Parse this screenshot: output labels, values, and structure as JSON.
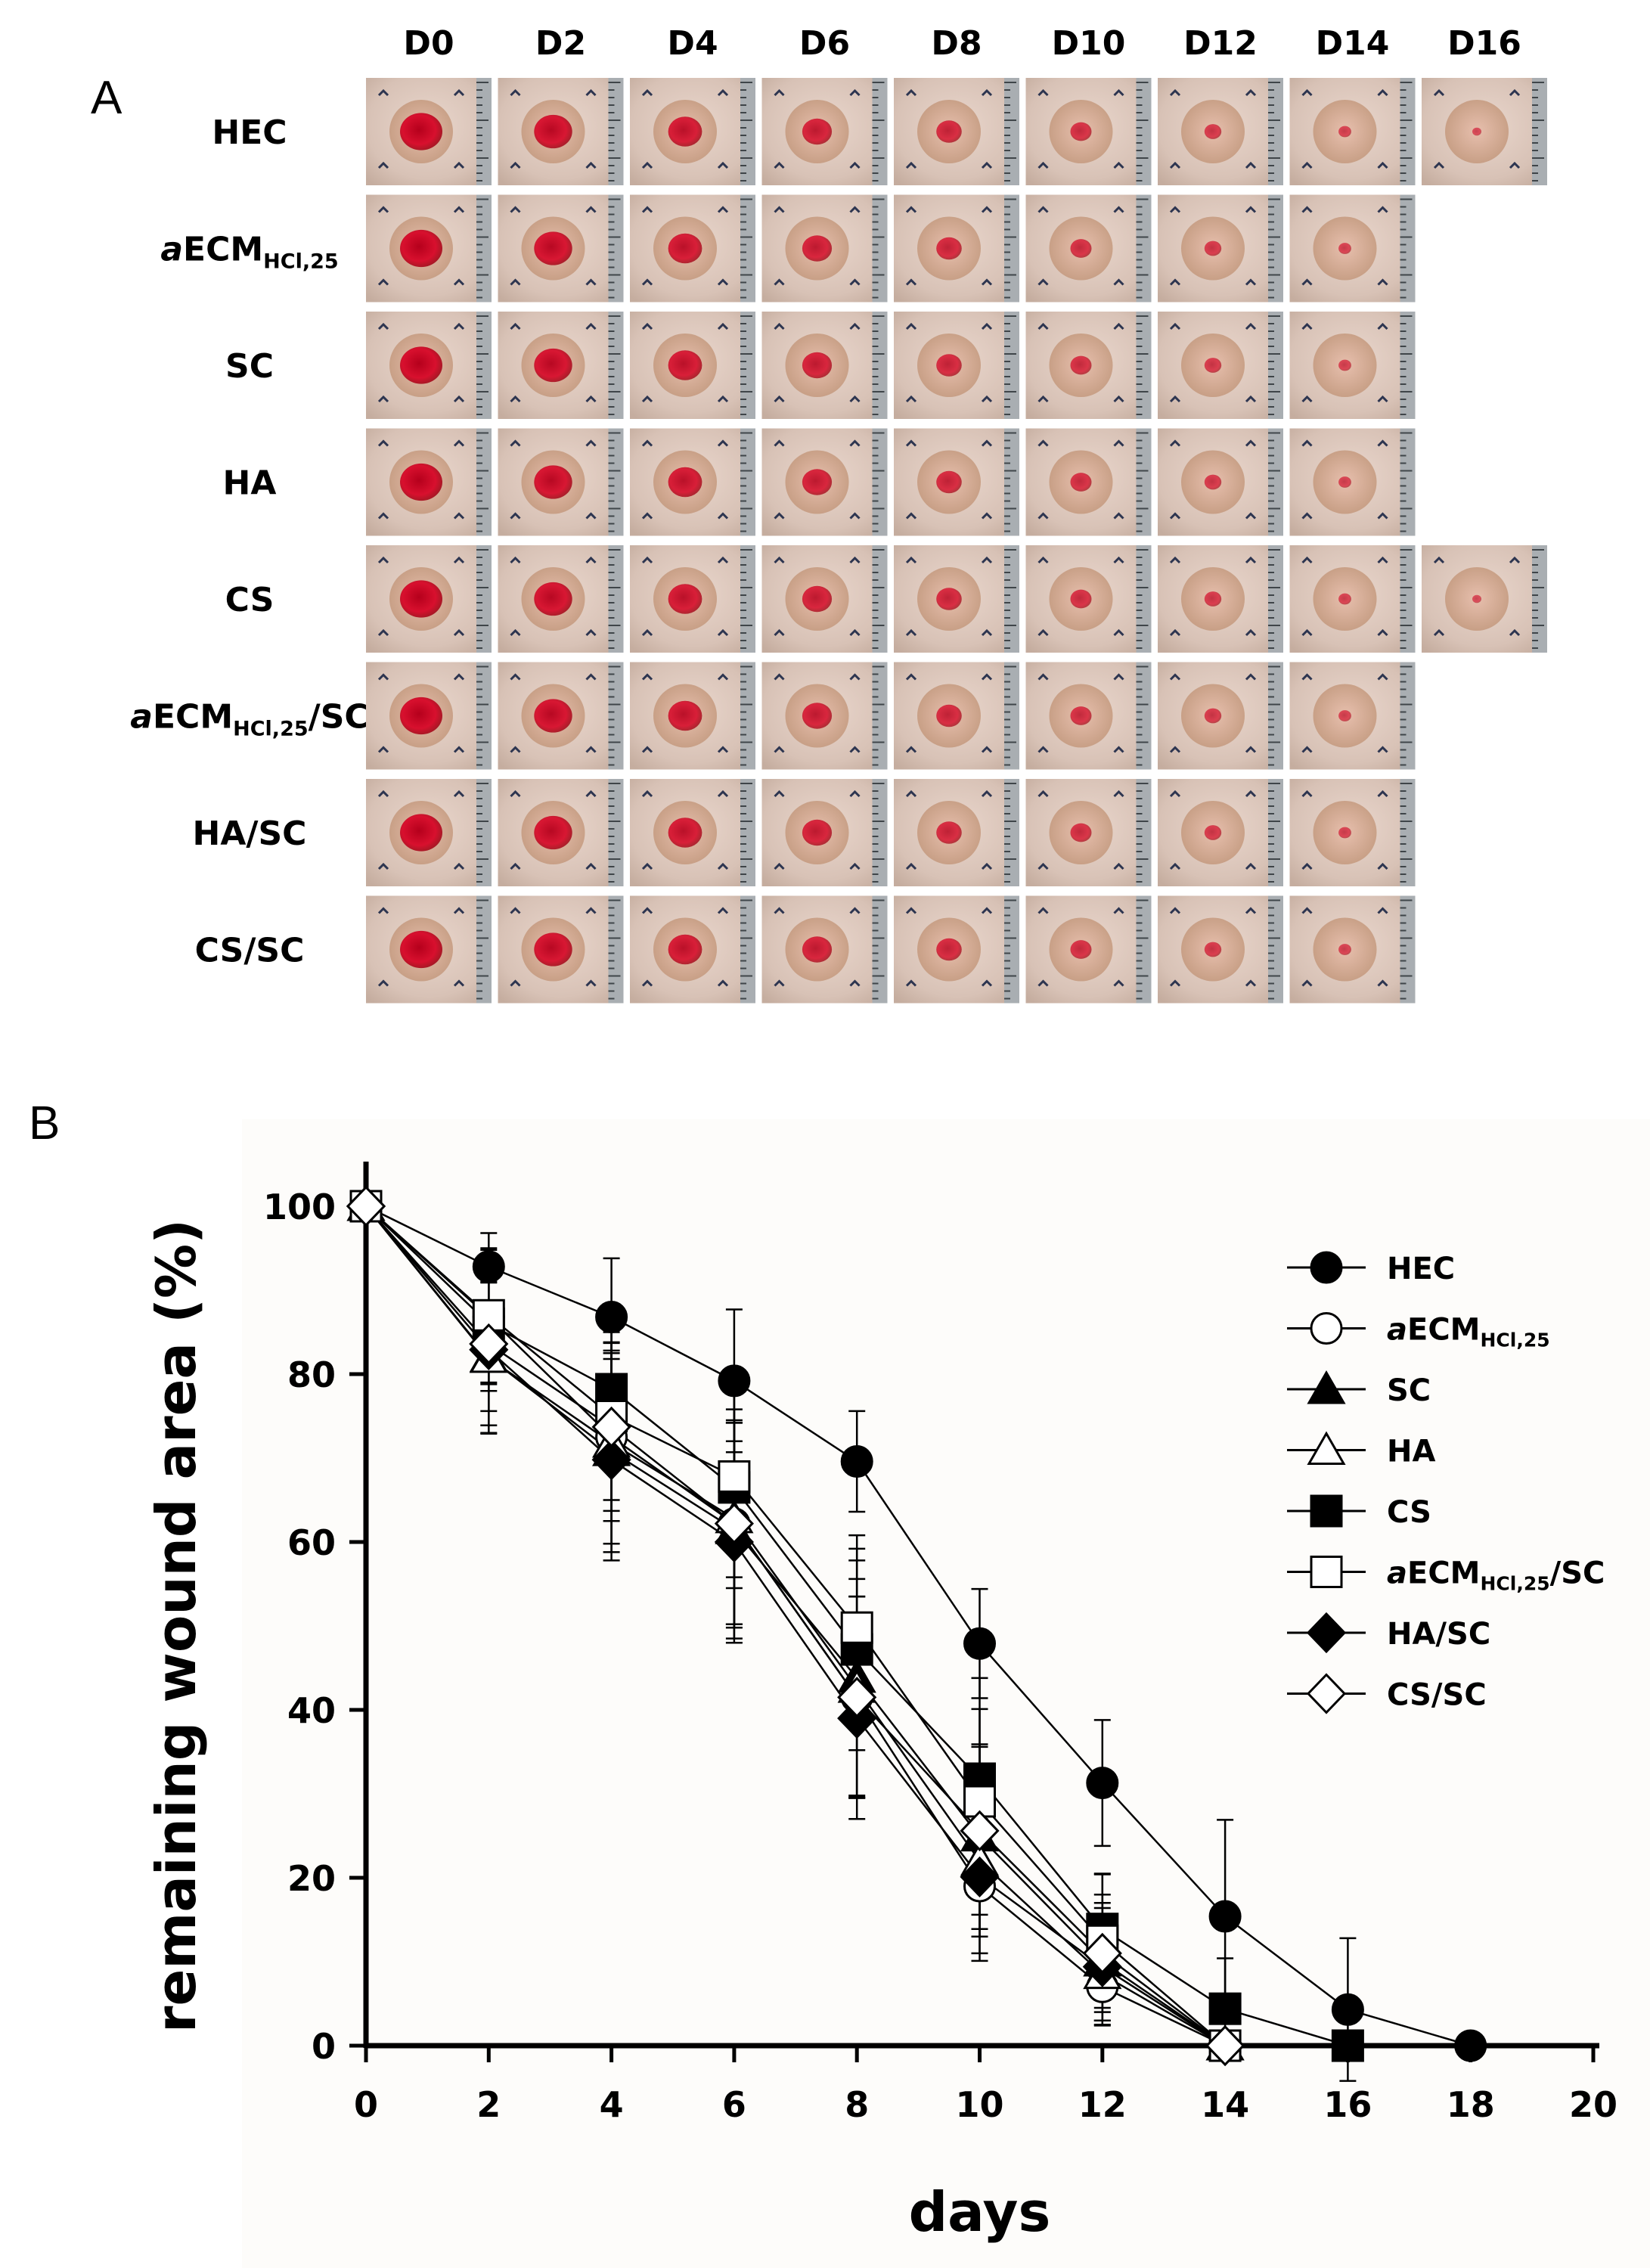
{
  "panel_labels": {
    "a": "A",
    "b": "B"
  },
  "photo_grid": {
    "days": [
      "D0",
      "D2",
      "D4",
      "D6",
      "D8",
      "D10",
      "D12",
      "D14",
      "D16"
    ],
    "rows": [
      {
        "label": "HEC",
        "italic_prefix": "",
        "main": "HEC",
        "sub": "",
        "suffix": "",
        "n_photos": 9
      },
      {
        "label": "aECM HCl,25",
        "italic_prefix": "a",
        "main": "ECM",
        "sub": "HCl,25",
        "suffix": "",
        "n_photos": 8
      },
      {
        "label": "SC",
        "italic_prefix": "",
        "main": "SC",
        "sub": "",
        "suffix": "",
        "n_photos": 8
      },
      {
        "label": "HA",
        "italic_prefix": "",
        "main": "HA",
        "sub": "",
        "suffix": "",
        "n_photos": 8
      },
      {
        "label": "CS",
        "italic_prefix": "",
        "main": "CS",
        "sub": "",
        "suffix": "",
        "n_photos": 9
      },
      {
        "label": "aECM HCl,25 /SC",
        "italic_prefix": "a",
        "main": "ECM",
        "sub": "HCl,25",
        "suffix": "/SC",
        "n_photos": 8
      },
      {
        "label": "HA/SC",
        "italic_prefix": "",
        "main": "HA/SC",
        "sub": "",
        "suffix": "",
        "n_photos": 8
      },
      {
        "label": "CS/SC",
        "italic_prefix": "",
        "main": "CS/SC",
        "sub": "",
        "suffix": "",
        "n_photos": 8
      }
    ]
  },
  "chart_data": {
    "type": "line",
    "xlabel": "days",
    "ylabel": "remaining wound area (%)",
    "xlim": [
      0,
      20
    ],
    "ylim": [
      0,
      100
    ],
    "xticks": [
      0,
      2,
      4,
      6,
      8,
      10,
      12,
      14,
      16,
      18,
      20
    ],
    "yticks": [
      0,
      20,
      40,
      60,
      80,
      100
    ],
    "legend_position": "top-right",
    "series": [
      {
        "name": "HEC",
        "italic_prefix": "",
        "main": "HEC",
        "sub": "",
        "suffix": "",
        "marker": "circle",
        "filled": true,
        "x": [
          0,
          2,
          4,
          6,
          8,
          10,
          12,
          14,
          16,
          18
        ],
        "y": [
          100,
          92.8,
          86.8,
          79.2,
          69.6,
          47.9,
          31.3,
          15.4,
          4.3,
          0
        ],
        "err": [
          0,
          4,
          7,
          8.5,
          6,
          6.5,
          7.5,
          11.5,
          8.5,
          0
        ]
      },
      {
        "name": "aECM HCl,25",
        "italic_prefix": "a",
        "main": "ECM",
        "sub": "HCl,25",
        "suffix": "",
        "marker": "circle",
        "filled": false,
        "x": [
          0,
          2,
          4,
          6,
          8,
          10,
          12,
          14
        ],
        "y": [
          100,
          86.8,
          72.5,
          62.2,
          41.5,
          19,
          7,
          0
        ],
        "err": [
          0,
          8,
          10,
          12,
          12,
          8,
          4,
          0
        ]
      },
      {
        "name": "SC",
        "italic_prefix": "",
        "main": "SC",
        "sub": "",
        "suffix": "",
        "marker": "triangle",
        "filled": true,
        "x": [
          0,
          2,
          4,
          6,
          8,
          10,
          12,
          14
        ],
        "y": [
          100,
          82,
          70.8,
          61.5,
          43.8,
          24.9,
          10,
          0
        ],
        "err": [
          0,
          9,
          12,
          13,
          14,
          11,
          7,
          0
        ]
      },
      {
        "name": "HA",
        "italic_prefix": "",
        "main": "HA",
        "sub": "",
        "suffix": "",
        "marker": "triangle",
        "filled": false,
        "x": [
          0,
          2,
          4,
          6,
          8,
          10,
          12,
          14
        ],
        "y": [
          100,
          81.9,
          71.8,
          62.8,
          42.6,
          22,
          8.5,
          0
        ],
        "err": [
          0,
          9,
          12,
          13,
          13,
          9,
          6,
          0
        ]
      },
      {
        "name": "CS",
        "italic_prefix": "",
        "main": "CS",
        "sub": "",
        "suffix": "",
        "marker": "square",
        "filled": true,
        "x": [
          0,
          2,
          4,
          6,
          8,
          10,
          12,
          14,
          16
        ],
        "y": [
          100,
          86,
          78.2,
          66.5,
          47.2,
          31.8,
          13.9,
          4.4,
          0
        ],
        "err": [
          0,
          8,
          9,
          12,
          12,
          12,
          6.5,
          6,
          0
        ]
      },
      {
        "name": "aECM HCl,25 /SC",
        "italic_prefix": "a",
        "main": "ECM",
        "sub": "HCl,25",
        "suffix": "/SC",
        "marker": "square",
        "filled": false,
        "x": [
          0,
          2,
          4,
          6,
          8,
          10,
          12,
          14
        ],
        "y": [
          100,
          87,
          75,
          67.8,
          49.8,
          29.1,
          12.5,
          0
        ],
        "err": [
          0,
          8,
          10,
          12,
          11,
          11,
          8,
          0
        ]
      },
      {
        "name": "HA/SC",
        "italic_prefix": "",
        "main": "HA/SC",
        "sub": "",
        "suffix": "",
        "marker": "diamond",
        "filled": true,
        "x": [
          0,
          2,
          4,
          6,
          8,
          10,
          12,
          14
        ],
        "y": [
          100,
          82.9,
          69.8,
          60,
          39,
          20.1,
          9.4,
          0
        ],
        "err": [
          0,
          9,
          12,
          12,
          12,
          10,
          7,
          0
        ]
      },
      {
        "name": "CS/SC",
        "italic_prefix": "",
        "main": "CS/SC",
        "sub": "",
        "suffix": "",
        "marker": "diamond",
        "filled": false,
        "x": [
          0,
          2,
          4,
          6,
          8,
          10,
          12,
          14
        ],
        "y": [
          100,
          83.6,
          73.7,
          62.2,
          41.5,
          25.6,
          11,
          0
        ],
        "err": [
          0,
          8,
          10,
          12,
          12,
          10,
          7,
          0
        ]
      }
    ]
  }
}
